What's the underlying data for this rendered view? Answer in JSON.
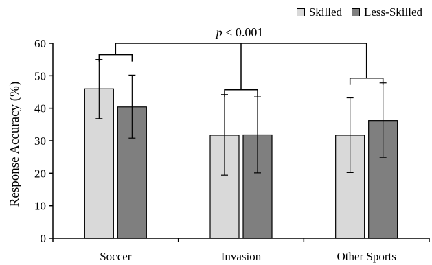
{
  "chart_data": {
    "type": "bar",
    "categories": [
      "Soccer",
      "Invasion",
      "Other Sports"
    ],
    "series": [
      {
        "name": "Skilled",
        "values": [
          46,
          31.7,
          31.7
        ],
        "error_low": [
          36.8,
          19.4,
          20.2
        ],
        "error_high": [
          55,
          44.2,
          43.2
        ],
        "color": "#d9d9d9"
      },
      {
        "name": "Less-Skilled",
        "values": [
          40.4,
          31.8,
          36.2
        ],
        "error_low": [
          30.8,
          20.1,
          24.9
        ],
        "error_high": [
          50.2,
          43.5,
          47.8
        ],
        "color": "#7f7f7f"
      }
    ],
    "xlabel": "",
    "ylabel": "Response Accuracy (%)",
    "ylim": [
      0,
      60
    ],
    "yticks": [
      "0",
      "10",
      "20",
      "30",
      "40",
      "50",
      "60"
    ],
    "grid": false,
    "legend_position": "top-right",
    "annotation": {
      "p_symbol": "p",
      "text": " < 0.001"
    }
  }
}
